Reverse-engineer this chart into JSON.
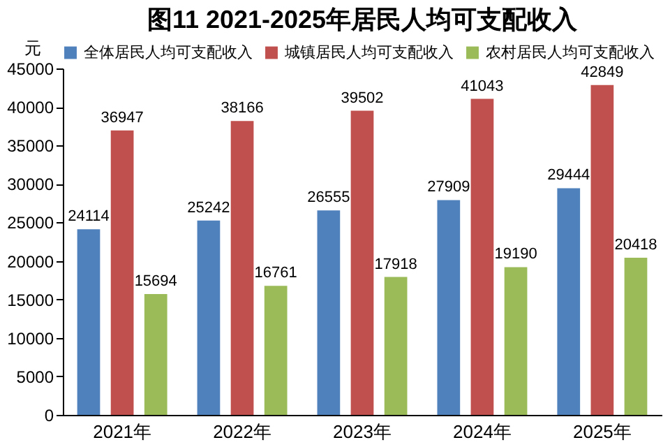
{
  "chart_data": {
    "type": "bar",
    "title": "图11  2021-2025年居民人均可支配收入",
    "ylabel": "元",
    "categories": [
      "2021年",
      "2022年",
      "2023年",
      "2024年",
      "2025年"
    ],
    "series": [
      {
        "name": "全体居民人均可支配收入",
        "color": "#4f81bd",
        "values": [
          24114,
          25242,
          26555,
          27909,
          29444
        ]
      },
      {
        "name": "城镇居民人均可支配收入",
        "color": "#c0504d",
        "values": [
          36947,
          38166,
          39502,
          41043,
          42849
        ]
      },
      {
        "name": "农村居民人均可支配收入",
        "color": "#9bbb59",
        "values": [
          15694,
          16761,
          17918,
          19190,
          20418
        ]
      }
    ],
    "ylim": [
      0,
      45000
    ],
    "yticks": [
      0,
      5000,
      10000,
      15000,
      20000,
      25000,
      30000,
      35000,
      40000,
      45000
    ],
    "data_labels": true,
    "legend": "top"
  }
}
